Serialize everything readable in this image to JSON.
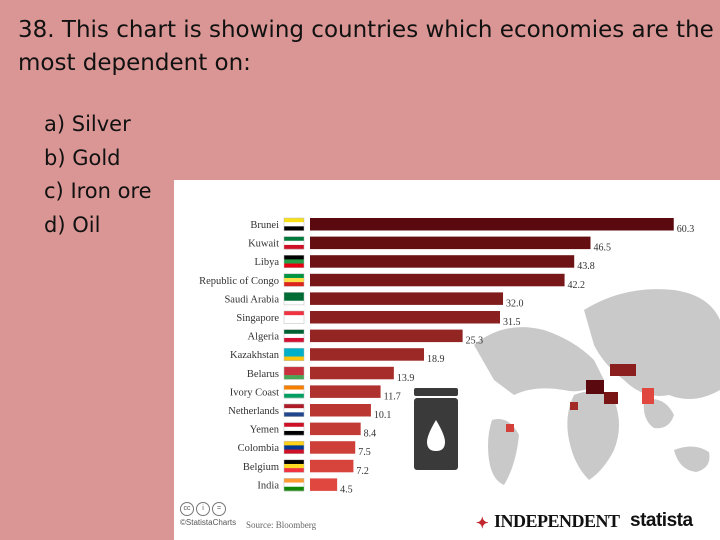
{
  "question": {
    "text": "38. This chart is showing countries which economies are the most dependent on:"
  },
  "answers": [
    {
      "letter": "a)",
      "text": "Silver"
    },
    {
      "letter": "b)",
      "text": "Gold"
    },
    {
      "letter": "c)",
      "text": "Iron ore"
    },
    {
      "letter": "d)",
      "text": "Oil"
    }
  ],
  "footer": {
    "credit": "©StatistaCharts",
    "source": "Source: Bloomberg",
    "publisher": "INDEPENDENT",
    "brand": "statista"
  },
  "colors": {
    "background": "#d99694",
    "bar_darkest": "#5a0a0e",
    "bar_lightest": "#e0483f"
  },
  "chart_data": {
    "type": "bar",
    "orientation": "horizontal",
    "title": "",
    "xlabel": "",
    "ylabel": "",
    "categories": [
      "Brunei",
      "Kuwait",
      "Libya",
      "Republic of Congo",
      "Saudi Arabia",
      "Singapore",
      "Algeria",
      "Kazakhstan",
      "Belarus",
      "Ivory Coast",
      "Netherlands",
      "Yemen",
      "Colombia",
      "Belgium",
      "India"
    ],
    "values": [
      60.3,
      46.5,
      43.8,
      42.2,
      32.0,
      31.5,
      25.3,
      18.9,
      13.9,
      11.7,
      10.1,
      8.4,
      7.5,
      7.2,
      4.5
    ],
    "value_labels": [
      "60.3",
      "46.5",
      "43.8",
      "42.2",
      "32.0",
      "31.5",
      "25.3",
      "18.9",
      "13.9",
      "11.7",
      "10.1",
      "8.4",
      "7.5",
      "7.2",
      "4.5"
    ],
    "xlim": [
      0,
      62
    ],
    "grid": false,
    "legend": "none"
  }
}
